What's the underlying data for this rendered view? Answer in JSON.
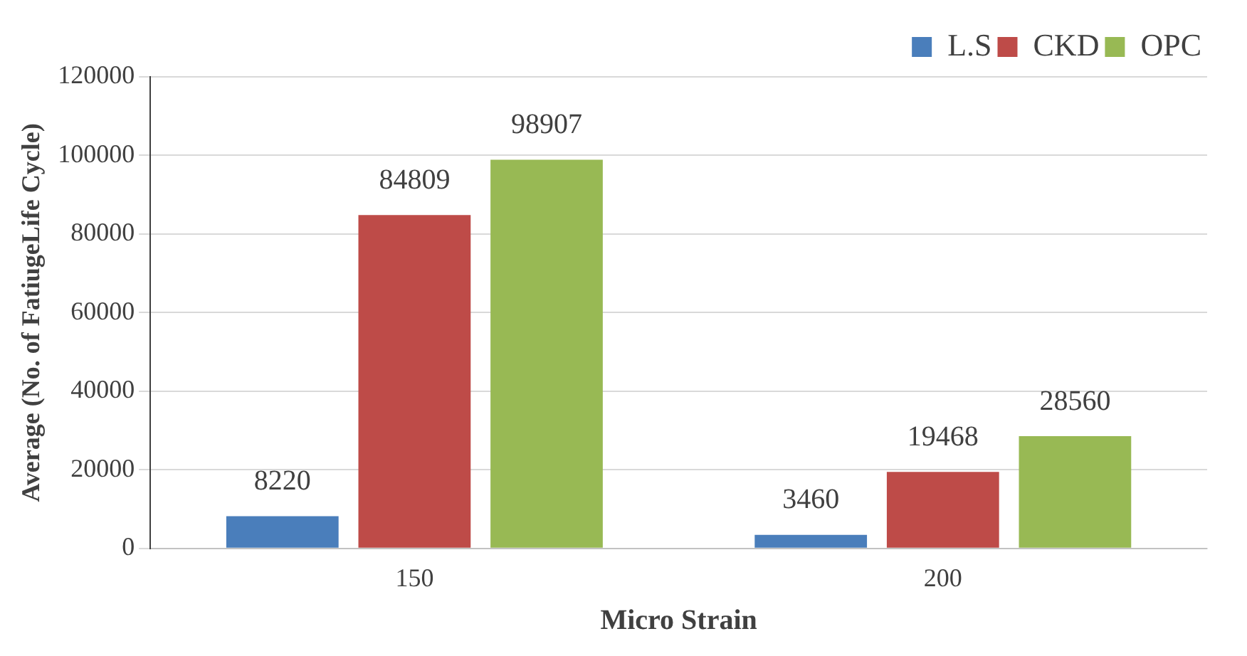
{
  "chart_data": {
    "type": "bar",
    "xlabel": "Micro Strain",
    "ylabel": "Average (No. of FatiugeLife Cycle)",
    "categories": [
      "150",
      "200"
    ],
    "series": [
      {
        "name": "L.S",
        "color": "#4a7ebb",
        "values": [
          8220,
          3460
        ]
      },
      {
        "name": "CKD",
        "color": "#be4b48",
        "values": [
          84809,
          19468
        ]
      },
      {
        "name": "OPC",
        "color": "#98b954",
        "values": [
          98907,
          28560
        ]
      }
    ],
    "ylim": [
      0,
      120000
    ],
    "yticks": [
      0,
      20000,
      40000,
      60000,
      80000,
      100000,
      120000
    ],
    "grid": "y",
    "legend": "top right",
    "data_labels": true
  }
}
